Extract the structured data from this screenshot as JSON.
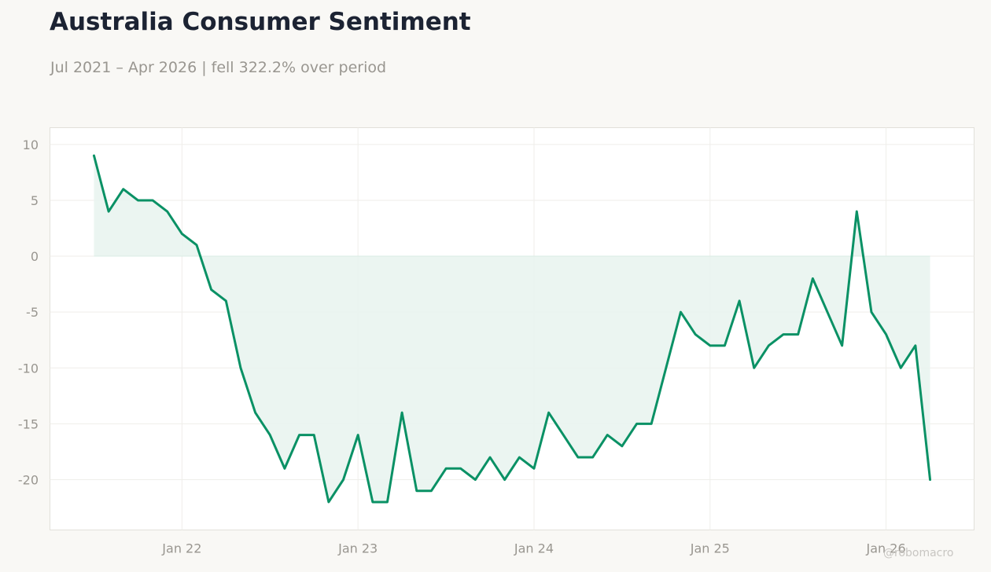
{
  "header": {
    "title": "Australia Consumer Sentiment",
    "subtitle": "Jul 2021 – Apr 2026 | fell 322.2% over period"
  },
  "watermark": "@robomacro",
  "colors": {
    "line": "#0a9165",
    "fill": "#e9f4ef",
    "background": "#f9f8f5",
    "plot_background": "#ffffff"
  },
  "chart_data": {
    "type": "area",
    "title": "Australia Consumer Sentiment",
    "subtitle": "Jul 2021 – Apr 2026 | fell 322.2% over period",
    "xlabel": "",
    "ylabel": "",
    "grid": true,
    "legend": "none",
    "xlim": [
      "2021-04",
      "2026-07"
    ],
    "ylim": [
      -24.5,
      11.5
    ],
    "x_ticks": [
      {
        "date": "2022-01",
        "label": "Jan 22"
      },
      {
        "date": "2023-01",
        "label": "Jan 23"
      },
      {
        "date": "2024-01",
        "label": "Jan 24"
      },
      {
        "date": "2025-01",
        "label": "Jan 25"
      },
      {
        "date": "2026-01",
        "label": "Jan 26"
      }
    ],
    "y_ticks": [
      10,
      5,
      0,
      -5,
      -10,
      -15,
      -20
    ],
    "y_tick_labels": [
      "10",
      "5",
      "0",
      "-5",
      "-10",
      "-15",
      "-20"
    ],
    "x": [
      "2021-07",
      "2021-08",
      "2021-09",
      "2021-10",
      "2021-11",
      "2021-12",
      "2022-01",
      "2022-02",
      "2022-03",
      "2022-04",
      "2022-05",
      "2022-06",
      "2022-07",
      "2022-08",
      "2022-09",
      "2022-10",
      "2022-11",
      "2022-12",
      "2023-01",
      "2023-02",
      "2023-03",
      "2023-04",
      "2023-05",
      "2023-06",
      "2023-07",
      "2023-08",
      "2023-09",
      "2023-10",
      "2023-11",
      "2023-12",
      "2024-01",
      "2024-02",
      "2024-03",
      "2024-04",
      "2024-05",
      "2024-06",
      "2024-07",
      "2024-08",
      "2024-09",
      "2024-10",
      "2024-11",
      "2024-12",
      "2025-01",
      "2025-02",
      "2025-03",
      "2025-04",
      "2025-05",
      "2025-06",
      "2025-07",
      "2025-08",
      "2025-09",
      "2025-10",
      "2025-11",
      "2025-12",
      "2026-01",
      "2026-02",
      "2026-03",
      "2026-04"
    ],
    "series": [
      {
        "values": [
          9,
          4,
          6,
          5,
          5,
          4,
          2,
          1,
          -3,
          -4,
          -10,
          -14,
          -16,
          -19,
          -16,
          -16,
          -22,
          -20,
          -16,
          -22,
          -22,
          -14,
          -21,
          -21,
          -19,
          -19,
          -20,
          -18,
          -20,
          -18,
          -19,
          -14,
          -16,
          -18,
          -18,
          -16,
          -17,
          -15,
          -15,
          -10,
          -5,
          -7,
          -8,
          -8,
          -4,
          -10,
          -8,
          -7,
          -7,
          -2,
          -5,
          -8,
          4,
          -5,
          -7,
          -10,
          -8,
          -20
        ]
      }
    ]
  }
}
